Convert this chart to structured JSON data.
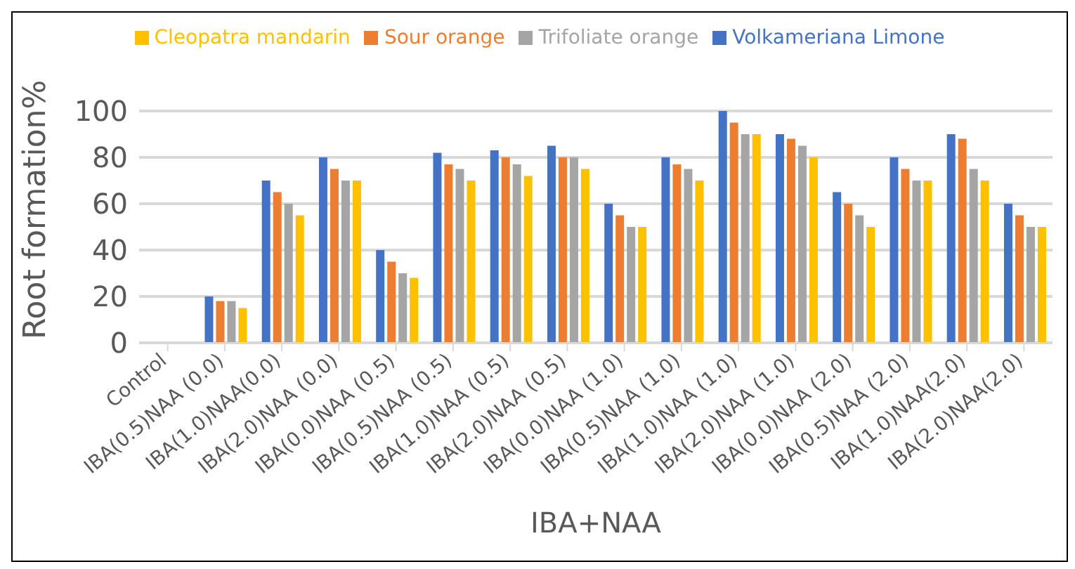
{
  "chart_data": {
    "type": "bar",
    "xlabel": "IBA+NAA",
    "ylabel": "Root formation%",
    "categories": [
      "Control",
      "IBA(0.5)NAA (0.0)",
      "IBA(1.0)NAA(0.0)",
      "IBA(2.0)NAA (0.0)",
      "IBA(0.0)NAA (0.5)",
      "IBA(0.5)NAA (0.5)",
      "IBA(1.0)NAA (0.5)",
      "IBA(2.0)NAA (0.5)",
      "IBA(0.0)NAA (1.0)",
      "IBA(0.5)NAA (1.0)",
      "IBA(1.0)NAA (1.0)",
      "IBA(2.0)NAA (1.0)",
      "IBA(0.0)NAA (2.0)",
      "IBA(0.5)NAA (2.0)",
      "IBA(1.0)NAA(2.0)",
      "IBA(2.0)NAA(2.0)"
    ],
    "series": [
      {
        "name": "Volkameriana Limone",
        "color": "#4472c4",
        "values": [
          0,
          20,
          70,
          80,
          40,
          82,
          83,
          85,
          60,
          80,
          100,
          90,
          65,
          80,
          90,
          60
        ]
      },
      {
        "name": "Sour orange",
        "color": "#ed7d31",
        "values": [
          0,
          18,
          65,
          75,
          35,
          77,
          80,
          80,
          55,
          77,
          95,
          88,
          60,
          75,
          88,
          55
        ]
      },
      {
        "name": "Trifoliate orange",
        "color": "#a5a5a5",
        "values": [
          0,
          18,
          60,
          70,
          30,
          75,
          77,
          80,
          50,
          75,
          90,
          85,
          55,
          70,
          75,
          50
        ]
      },
      {
        "name": "Cleopatra mandarin",
        "color": "#ffc000",
        "values": [
          0,
          15,
          55,
          70,
          28,
          70,
          72,
          75,
          50,
          70,
          90,
          80,
          50,
          70,
          70,
          50
        ]
      }
    ],
    "ylim": [
      0,
      100
    ],
    "yticks": [
      0,
      20,
      40,
      60,
      80,
      100
    ],
    "grid": "y",
    "legend": "top"
  }
}
